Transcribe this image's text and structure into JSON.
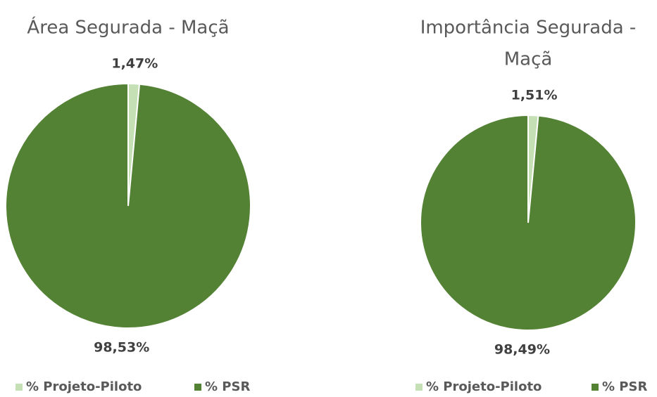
{
  "chart_data": [
    {
      "type": "pie",
      "title": [
        "Área Segurada - Maçã"
      ],
      "categories": [
        "% Projeto-Piloto",
        "% PSR"
      ],
      "values": [
        1.47,
        98.53
      ],
      "value_labels": [
        "1,47%",
        "98,53%"
      ],
      "colors": [
        "#c5e0b4",
        "#548235"
      ],
      "legend": "bottom"
    },
    {
      "type": "pie",
      "title": [
        "Importância Segurada -",
        "Maçã"
      ],
      "categories": [
        "% Projeto-Piloto",
        "% PSR"
      ],
      "values": [
        1.51,
        98.49
      ],
      "value_labels": [
        "1,51%",
        "98,49%"
      ],
      "colors": [
        "#c5e0b4",
        "#548235"
      ],
      "legend": "bottom"
    }
  ]
}
